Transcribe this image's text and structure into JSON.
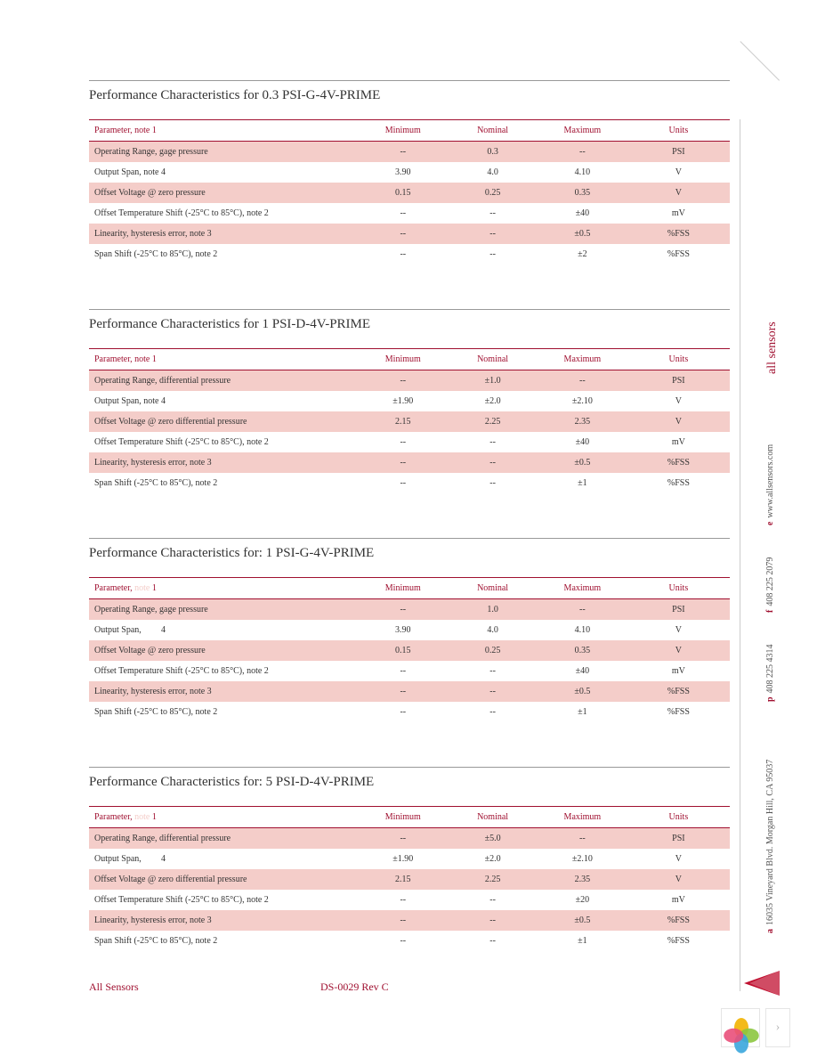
{
  "colors": {
    "accent": "#a01030",
    "row_shade": "#f4cdc9",
    "text": "#333333",
    "rule": "#999999",
    "side_body": "#555555"
  },
  "headers": {
    "parameter": "Parameter, note 1",
    "parameter_alt": "Parameter,",
    "parameter_alt_suffix": "1",
    "minimum": "Minimum",
    "nominal": "Nominal",
    "maximum": "Maximum",
    "units": "Units"
  },
  "sections": [
    {
      "title": "Performance Characteristics  for 0.3 PSI-G-4V-PRIME",
      "header_style": "std",
      "rows": [
        {
          "shaded": true,
          "p": "Operating Range, gage pressure",
          "min": "--",
          "nom": "0.3",
          "max": "--",
          "u": "PSI"
        },
        {
          "shaded": false,
          "p": "Output Span, note 4",
          "min": "3.90",
          "nom": "4.0",
          "max": "4.10",
          "u": "V"
        },
        {
          "shaded": true,
          "p": "Offset Voltage @ zero pressure",
          "min": "0.15",
          "nom": "0.25",
          "max": "0.35",
          "u": "V"
        },
        {
          "shaded": false,
          "p": "Offset Temperature Shift (-25°C to 85°C), note 2",
          "min": "--",
          "nom": "--",
          "max": "±40",
          "u": "mV"
        },
        {
          "shaded": true,
          "p": "Linearity, hysteresis error, note 3",
          "min": "--",
          "nom": "--",
          "max": "±0.5",
          "u": "%FSS"
        },
        {
          "shaded": false,
          "p": "Span Shift (-25°C to 85°C), note 2",
          "min": "--",
          "nom": "--",
          "max": "±2",
          "u": "%FSS"
        }
      ]
    },
    {
      "title": "Performance Characteristics  for 1 PSI-D-4V-PRIME",
      "header_style": "std",
      "rows": [
        {
          "shaded": true,
          "p": "Operating Range, differential pressure",
          "min": "--",
          "nom": "±1.0",
          "max": "--",
          "u": "PSI"
        },
        {
          "shaded": false,
          "p": "Output Span, note 4",
          "min": "±1.90",
          "nom": "±2.0",
          "max": "±2.10",
          "u": "V"
        },
        {
          "shaded": true,
          "p": "Offset Voltage @ zero differential pressure",
          "min": "2.15",
          "nom": "2.25",
          "max": "2.35",
          "u": "V"
        },
        {
          "shaded": false,
          "p": "Offset Temperature Shift (-25°C to 85°C), note 2",
          "min": "--",
          "nom": "--",
          "max": "±40",
          "u": "mV"
        },
        {
          "shaded": true,
          "p": "Linearity, hysteresis error, note 3",
          "min": "--",
          "nom": "--",
          "max": "±0.5",
          "u": "%FSS"
        },
        {
          "shaded": false,
          "p": "Span Shift (-25°C to 85°C), note 2",
          "min": "--",
          "nom": "--",
          "max": "±1",
          "u": "%FSS"
        }
      ]
    },
    {
      "title": "Performance Characteristics  for: 1 PSI-G-4V-PRIME",
      "header_style": "alt",
      "rows": [
        {
          "shaded": true,
          "p": "Operating Range, gage pressure",
          "min": "--",
          "nom": "1.0",
          "max": "--",
          "u": "PSI"
        },
        {
          "shaded": false,
          "p": "Output Span,",
          "p_suffix": "4",
          "min": "3.90",
          "nom": "4.0",
          "max": "4.10",
          "u": "V"
        },
        {
          "shaded": true,
          "p": "Offset Voltage @ zero pressure",
          "min": "0.15",
          "nom": "0.25",
          "max": "0.35",
          "u": "V"
        },
        {
          "shaded": false,
          "p": "Offset Temperature Shift (-25°C to 85°C), note 2",
          "min": "--",
          "nom": "--",
          "max": "±40",
          "u": "mV"
        },
        {
          "shaded": true,
          "p": "Linearity, hysteresis error, note 3",
          "min": "--",
          "nom": "--",
          "max": "±0.5",
          "u": "%FSS"
        },
        {
          "shaded": false,
          "p": "Span Shift (-25°C to 85°C), note 2",
          "min": "--",
          "nom": "--",
          "max": "±1",
          "u": "%FSS"
        }
      ]
    },
    {
      "title": "Performance Characteristics  for: 5 PSI-D-4V-PRIME",
      "header_style": "alt",
      "rows": [
        {
          "shaded": true,
          "p": "Operating Range, differential pressure",
          "min": "--",
          "nom": "±5.0",
          "max": "--",
          "u": "PSI"
        },
        {
          "shaded": false,
          "p": "Output Span,",
          "p_suffix": "4",
          "min": "±1.90",
          "nom": "±2.0",
          "max": "±2.10",
          "u": "V"
        },
        {
          "shaded": true,
          "p": "Offset Voltage @ zero differential pressure",
          "min": "2.15",
          "nom": "2.25",
          "max": "2.35",
          "u": "V"
        },
        {
          "shaded": false,
          "p": "Offset Temperature Shift (-25°C to 85°C), note 2",
          "min": "--",
          "nom": "--",
          "max": "±20",
          "u": "mV"
        },
        {
          "shaded": true,
          "p": "Linearity, hysteresis error, note 3",
          "min": "--",
          "nom": "--",
          "max": "±0.5",
          "u": "%FSS"
        },
        {
          "shaded": false,
          "p": "Span Shift (-25°C to 85°C), note 2",
          "min": "--",
          "nom": "--",
          "max": "±1",
          "u": "%FSS"
        }
      ]
    }
  ],
  "footer": {
    "left": "All Sensors",
    "center": "DS-0029 Rev C"
  },
  "side": {
    "brand": "all sensors",
    "web_prefix": "e",
    "web": "www.allsensors.com",
    "fax_prefix": "f",
    "fax": "408 225 2079",
    "phone_prefix": "p",
    "phone": "408 225 4314",
    "addr_prefix": "a",
    "addr": "16035 Vineyard Blvd. Morgan Hill, CA 95037"
  },
  "widget": {
    "petals": [
      "#f2b300",
      "#8cc63f",
      "#3aa6dd",
      "#e94f7a"
    ],
    "next_glyph": "›"
  }
}
